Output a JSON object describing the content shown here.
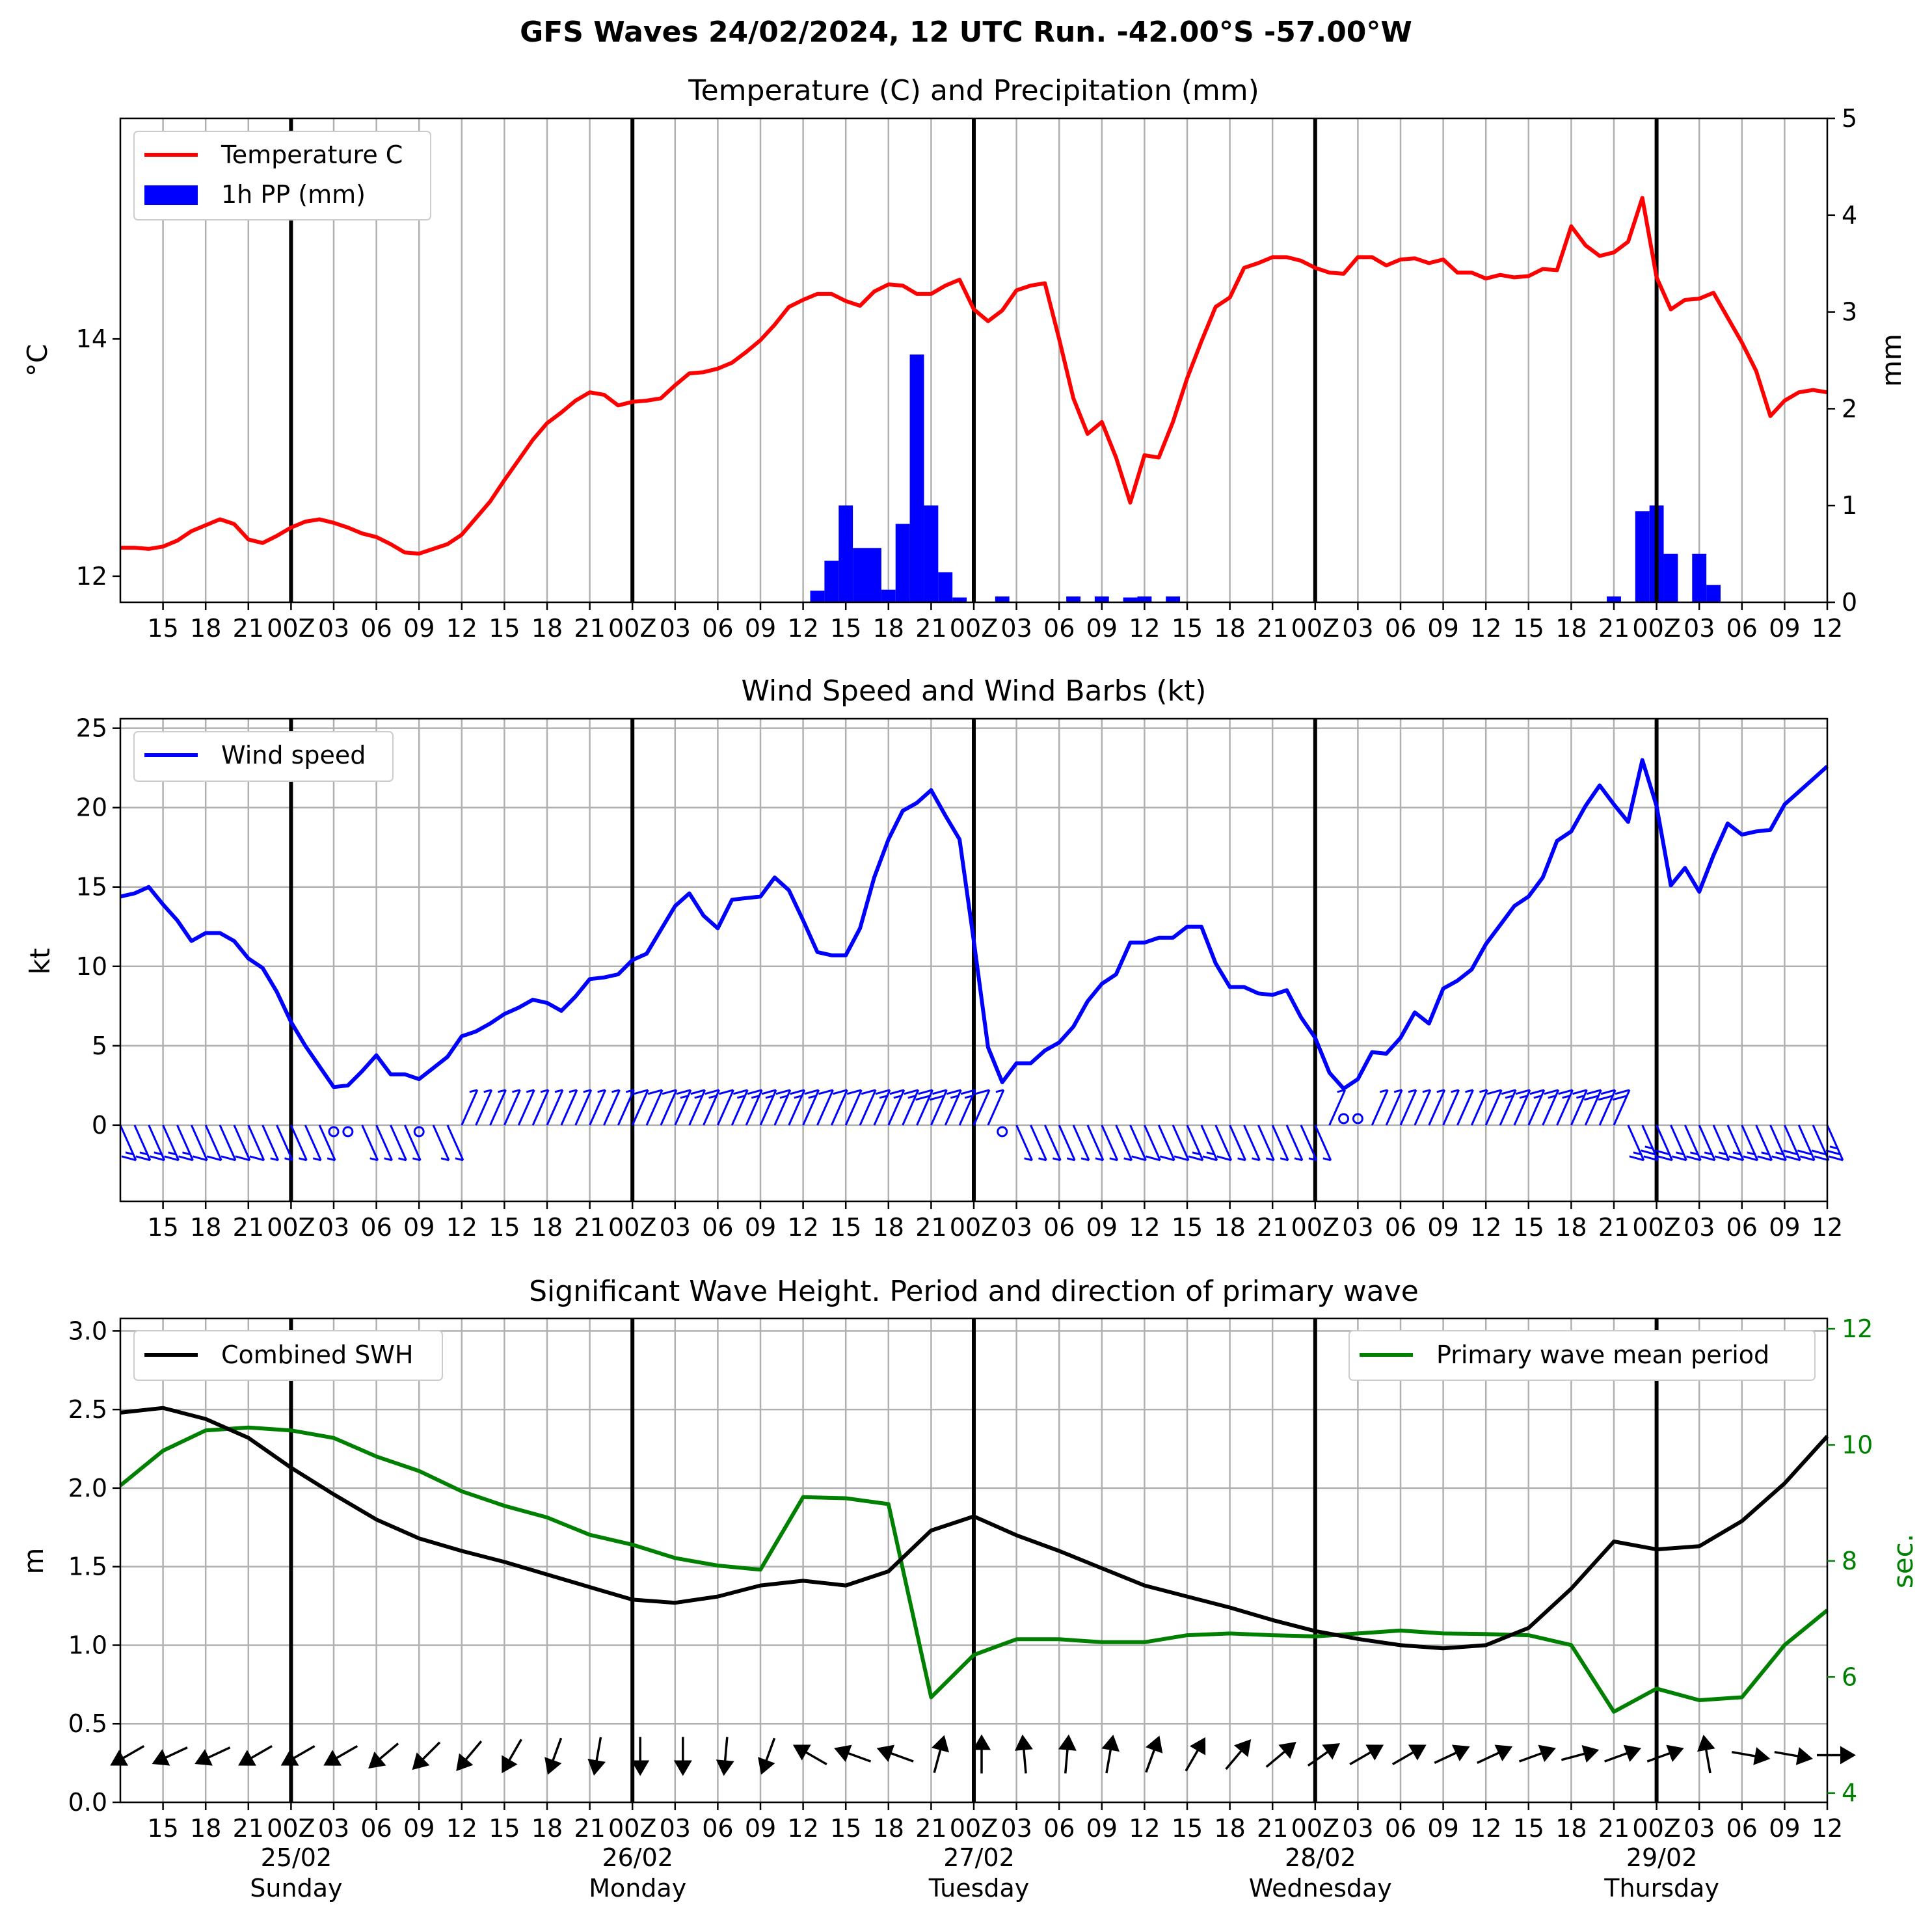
{
  "figure_title": "GFS Waves 24/02/2024, 12 UTC Run. -42.00°S -57.00°W",
  "colors": {
    "temperature": "#ff0000",
    "precipitation": "#0000ff",
    "wind": "#0000ff",
    "swh": "#000000",
    "period": "#008000",
    "grid": "#b0b0b0"
  },
  "time_axis": {
    "description": "hours since run start (24/02/2024 12 UTC), 3-hourly ticks",
    "tick_labels": [
      "15",
      "18",
      "21",
      "00Z",
      "03",
      "06",
      "09",
      "12",
      "15",
      "18",
      "21",
      "00Z",
      "03",
      "06",
      "09",
      "12",
      "15",
      "18",
      "21",
      "00Z",
      "03",
      "06",
      "09",
      "12",
      "15",
      "18",
      "21",
      "00Z",
      "03",
      "06",
      "09",
      "12",
      "15",
      "18",
      "21",
      "00Z",
      "03",
      "06",
      "09",
      "12"
    ],
    "day_labels": [
      {
        "date": "25/02",
        "weekday": "Sunday"
      },
      {
        "date": "26/02",
        "weekday": "Monday"
      },
      {
        "date": "27/02",
        "weekday": "Tuesday"
      },
      {
        "date": "28/02",
        "weekday": "Wednesday"
      },
      {
        "date": "29/02",
        "weekday": "Thursday"
      }
    ]
  },
  "chart_data": [
    {
      "type": "line",
      "title": "Temperature (C) and Precipitation (mm)",
      "ylabel": "$^\\circ$C",
      "ylabel_text": "°C",
      "y_ticks": [
        "12",
        "14"
      ],
      "ylim": [
        11.78,
        15.86
      ],
      "y2label": "mm",
      "y2_ticks": [
        "0",
        "1",
        "2",
        "3",
        "4",
        "5"
      ],
      "y2lim": [
        0,
        5
      ],
      "legend": [
        "Temperature C",
        "1h PP (mm)"
      ],
      "legend_position": "upper-left",
      "grid": true,
      "series": [
        {
          "name": "Temperature C",
          "x": [
            0,
            1,
            2,
            3,
            4,
            5,
            6,
            7,
            8,
            9,
            10,
            11,
            12,
            13,
            14,
            15,
            16,
            17,
            18,
            19,
            20,
            21,
            22,
            23,
            24,
            25,
            26,
            27,
            28,
            29,
            30,
            31,
            32,
            33,
            34,
            35,
            36,
            37,
            38,
            39,
            40,
            41,
            42,
            43,
            44,
            45,
            46,
            47,
            48,
            49,
            50,
            51,
            52,
            53,
            54,
            55,
            56,
            57,
            58,
            59,
            60,
            61,
            62,
            63,
            64,
            65,
            66,
            67,
            68,
            69,
            70,
            71,
            72,
            73,
            74,
            75,
            76,
            77,
            78,
            79,
            80,
            81,
            82,
            83,
            84,
            85,
            86,
            87,
            88,
            89,
            90,
            91,
            92,
            93,
            94,
            95,
            96,
            97,
            98,
            99,
            100,
            101,
            102,
            103,
            104,
            105,
            106,
            107,
            108,
            109,
            110,
            111,
            112,
            113,
            114,
            115,
            116,
            117,
            118,
            119,
            120
          ],
          "values": [
            12.24,
            12.24,
            12.23,
            12.25,
            12.3,
            12.38,
            12.43,
            12.48,
            12.44,
            12.31,
            12.28,
            12.34,
            12.41,
            12.46,
            12.48,
            12.45,
            12.41,
            12.36,
            12.33,
            12.27,
            12.2,
            12.19,
            12.23,
            12.27,
            12.35,
            12.49,
            12.63,
            12.81,
            12.98,
            13.15,
            13.29,
            13.38,
            13.48,
            13.55,
            13.53,
            13.44,
            13.47,
            13.48,
            13.5,
            13.61,
            13.71,
            13.72,
            13.75,
            13.8,
            13.89,
            13.99,
            14.12,
            14.27,
            14.33,
            14.38,
            14.38,
            14.32,
            14.28,
            14.4,
            14.46,
            14.45,
            14.38,
            14.38,
            14.45,
            14.5,
            14.25,
            14.15,
            14.24,
            14.41,
            14.45,
            14.47,
            14.0,
            13.5,
            13.2,
            13.3,
            13.0,
            12.62,
            13.02,
            13.0,
            13.3,
            13.67,
            13.98,
            14.27,
            14.35,
            14.6,
            14.64,
            14.69,
            14.69,
            14.66,
            14.6,
            14.56,
            14.55,
            14.69,
            14.69,
            14.62,
            14.67,
            14.68,
            14.64,
            14.67,
            14.56,
            14.56,
            14.51,
            14.54,
            14.52,
            14.53,
            14.59,
            14.58,
            14.95,
            14.79,
            14.7,
            14.73,
            14.82,
            15.19,
            14.52,
            14.25,
            14.33,
            14.34,
            14.39,
            14.18,
            13.97,
            13.73,
            13.35,
            13.48,
            13.55,
            13.57,
            13.55
          ]
        }
      ],
      "precipitation_bars": {
        "name": "1h PP (mm)",
        "x": [
          49,
          50,
          51,
          52,
          53,
          54,
          55,
          56,
          57,
          58,
          59,
          60,
          61,
          62,
          63,
          64,
          65,
          66,
          67,
          68,
          69,
          70,
          71,
          72,
          73,
          74,
          75,
          76,
          77,
          78,
          79,
          80,
          81,
          82,
          83,
          84,
          85,
          86,
          87,
          88,
          89,
          90,
          91,
          92,
          93,
          94,
          95,
          96,
          97,
          98,
          99,
          100,
          101,
          102,
          103,
          104,
          105,
          106,
          107,
          108,
          109,
          110,
          111,
          112,
          113,
          114,
          115,
          116,
          117,
          118,
          119,
          120
        ],
        "values": [
          0.12,
          0.43,
          1.0,
          0.56,
          0.56,
          0.13,
          0.81,
          2.56,
          1.0,
          0.31,
          0.05,
          0,
          0,
          0.06,
          0,
          0,
          0,
          0,
          0.06,
          0,
          0.06,
          0,
          0.05,
          0.06,
          0,
          0.06,
          0,
          0,
          0,
          0,
          0,
          0,
          0,
          0,
          0,
          0,
          0,
          0,
          0,
          0,
          0,
          0,
          0,
          0,
          0,
          0,
          0,
          0,
          0,
          0,
          0,
          0,
          0,
          0,
          0,
          0,
          0.06,
          0,
          0.94,
          1.0,
          0.5,
          0,
          0.5,
          0.18,
          0,
          0,
          0,
          0,
          0,
          0,
          0,
          0
        ]
      }
    },
    {
      "type": "line",
      "title": "Wind Speed and Wind Barbs (kt)",
      "ylabel": "kt",
      "y_ticks": [
        "0",
        "5",
        "10",
        "15",
        "20",
        "25"
      ],
      "ylim": [
        -4.8,
        25.6
      ],
      "legend": [
        "Wind speed"
      ],
      "legend_position": "upper-left",
      "grid": true,
      "series": [
        {
          "name": "Wind speed",
          "x": [
            0,
            1,
            2,
            3,
            4,
            5,
            6,
            7,
            8,
            9,
            10,
            11,
            12,
            13,
            14,
            15,
            16,
            17,
            18,
            19,
            20,
            21,
            22,
            23,
            24,
            25,
            26,
            27,
            28,
            29,
            30,
            31,
            32,
            33,
            34,
            35,
            36,
            37,
            38,
            39,
            40,
            41,
            42,
            43,
            44,
            45,
            46,
            47,
            48,
            49,
            50,
            51,
            52,
            53,
            54,
            55,
            56,
            57,
            58,
            59,
            60,
            61,
            62,
            63,
            64,
            65,
            66,
            67,
            68,
            69,
            70,
            71,
            72,
            73,
            74,
            75,
            76,
            77,
            78,
            79,
            80,
            81,
            82,
            83,
            84,
            85,
            86,
            87,
            88,
            89,
            90,
            91,
            92,
            93,
            94,
            95,
            96,
            97,
            98,
            99,
            100,
            101,
            102,
            103,
            104,
            105,
            106,
            107,
            108,
            109,
            110,
            111,
            112,
            113,
            114,
            115,
            116,
            117,
            118,
            119,
            120
          ],
          "values": [
            14.4,
            14.6,
            15.0,
            13.9,
            12.9,
            11.6,
            12.1,
            12.1,
            11.6,
            10.5,
            9.9,
            8.4,
            6.5,
            5.0,
            3.7,
            2.4,
            2.5,
            3.4,
            4.4,
            3.2,
            3.2,
            2.9,
            3.6,
            4.3,
            5.6,
            5.9,
            6.4,
            7.0,
            7.4,
            7.9,
            7.7,
            7.2,
            8.1,
            9.2,
            9.3,
            9.5,
            10.4,
            10.8,
            12.3,
            13.8,
            14.6,
            13.2,
            12.4,
            14.2,
            14.3,
            14.4,
            15.6,
            14.8,
            12.9,
            10.9,
            10.7,
            10.7,
            12.4,
            15.6,
            18.0,
            19.8,
            20.3,
            21.1,
            19.5,
            18.0,
            11.6,
            4.9,
            2.7,
            3.9,
            3.9,
            4.7,
            5.2,
            6.2,
            7.8,
            8.9,
            9.5,
            11.5,
            11.5,
            11.8,
            11.8,
            12.5,
            12.5,
            10.2,
            8.7,
            8.7,
            8.3,
            8.2,
            8.5,
            6.8,
            5.5,
            3.3,
            2.3,
            2.9,
            4.6,
            4.5,
            5.5,
            7.1,
            6.4,
            8.6,
            9.1,
            9.8,
            11.4,
            12.6,
            13.8,
            14.4,
            15.6,
            17.9,
            18.5,
            20.1,
            21.4,
            20.2,
            19.1,
            23.0,
            20.1,
            15.1,
            16.2,
            14.7,
            17.0,
            19.0,
            18.3,
            18.5,
            18.6,
            20.2,
            21.0,
            21.8,
            22.6
          ]
        }
      ],
      "wind_barbs": "hourly wind barbs drawn along y=0 (northern/southern orientation)"
    },
    {
      "type": "line",
      "title": "Significant Wave Height. Period and direction of primary wave",
      "ylabel": "m",
      "y_ticks": [
        "0.0",
        "0.5",
        "1.0",
        "1.5",
        "2.0",
        "2.5",
        "3.0"
      ],
      "ylim": [
        0.0,
        3.08
      ],
      "y2label": "sec.",
      "y2_ticks": [
        "4",
        "6",
        "8",
        "10",
        "12"
      ],
      "y2lim": [
        3.84,
        12.18
      ],
      "legend_left": [
        "Combined SWH"
      ],
      "legend_right": [
        "Primary wave mean period"
      ],
      "grid": true,
      "series": [
        {
          "name": "Combined SWH",
          "x": [
            0,
            3,
            6,
            9,
            12,
            15,
            18,
            21,
            24,
            27,
            30,
            33,
            36,
            39,
            42,
            45,
            48,
            51,
            54,
            57,
            60,
            63,
            66,
            69,
            72,
            75,
            78,
            81,
            84,
            87,
            90,
            93,
            96,
            99,
            102,
            105,
            108,
            111,
            114,
            117,
            120
          ],
          "values": [
            2.48,
            2.51,
            2.44,
            2.32,
            2.13,
            1.96,
            1.8,
            1.68,
            1.6,
            1.53,
            1.45,
            1.37,
            1.29,
            1.27,
            1.31,
            1.38,
            1.41,
            1.38,
            1.47,
            1.73,
            1.82,
            1.7,
            1.6,
            1.49,
            1.38,
            1.31,
            1.24,
            1.16,
            1.09,
            1.04,
            1.0,
            0.98,
            1.0,
            1.11,
            1.36,
            1.66,
            1.61,
            1.63,
            1.79,
            2.03,
            2.33
          ]
        },
        {
          "name": "Primary wave mean period",
          "x": [
            0,
            3,
            6,
            9,
            12,
            15,
            18,
            21,
            24,
            27,
            30,
            33,
            36,
            39,
            42,
            45,
            48,
            51,
            54,
            57,
            60,
            63,
            66,
            69,
            72,
            75,
            78,
            81,
            84,
            87,
            90,
            93,
            96,
            99,
            102,
            105,
            108,
            111,
            114,
            117,
            120
          ],
          "values": [
            9.3,
            9.9,
            10.25,
            10.3,
            10.25,
            10.12,
            9.8,
            9.55,
            9.2,
            8.95,
            8.75,
            8.45,
            8.28,
            8.05,
            7.92,
            7.85,
            9.1,
            9.08,
            8.98,
            5.65,
            6.38,
            6.65,
            6.65,
            6.6,
            6.6,
            6.72,
            6.75,
            6.72,
            6.7,
            6.75,
            6.8,
            6.75,
            6.74,
            6.72,
            6.55,
            5.4,
            5.8,
            5.6,
            5.65,
            6.55,
            7.15
          ]
        }
      ],
      "wave_direction_arrows_deg": [
        240,
        245,
        245,
        240,
        240,
        240,
        230,
        225,
        220,
        210,
        200,
        190,
        180,
        180,
        185,
        200,
        300,
        290,
        290,
        15,
        0,
        355,
        5,
        10,
        20,
        30,
        40,
        50,
        55,
        60,
        60,
        65,
        65,
        70,
        75,
        70,
        70,
        350,
        100,
        100,
        90
      ]
    }
  ]
}
